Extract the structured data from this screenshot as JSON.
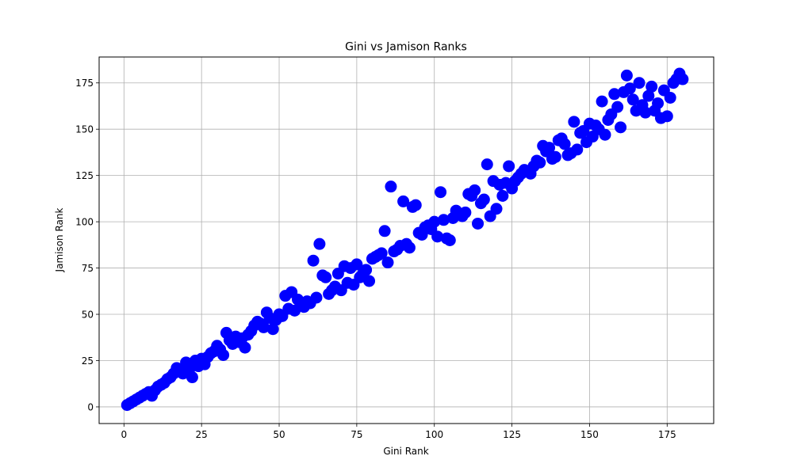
{
  "chart_data": {
    "type": "scatter",
    "title": "Gini vs Jamison Ranks",
    "xlabel": "Gini Rank",
    "ylabel": "Jamison Rank",
    "xlim": [
      -8,
      190
    ],
    "ylim": [
      -9,
      189
    ],
    "xticks": [
      0,
      25,
      50,
      75,
      100,
      125,
      150,
      175
    ],
    "yticks": [
      0,
      25,
      50,
      75,
      100,
      125,
      150,
      175
    ],
    "grid": true,
    "marker_color": "#0000ff",
    "series": [
      {
        "x": [
          1,
          2,
          3,
          4,
          5,
          6,
          7,
          8,
          9,
          10,
          11,
          12,
          13,
          14,
          15,
          16,
          17,
          18,
          19,
          20,
          21,
          22,
          23,
          24,
          25,
          26,
          27,
          28,
          29,
          30,
          31,
          32,
          33,
          34,
          35,
          36,
          37,
          38,
          39,
          40,
          41,
          42,
          43,
          44,
          45,
          46,
          47,
          48,
          49,
          50,
          51,
          52,
          53,
          54,
          55,
          56,
          57,
          58,
          59,
          60,
          61,
          62,
          63,
          64,
          65,
          66,
          67,
          68,
          69,
          70,
          71,
          72,
          73,
          74,
          75,
          76,
          77,
          78,
          79,
          80,
          81,
          82,
          83,
          84,
          85,
          86,
          87,
          88,
          89,
          90,
          91,
          92,
          93,
          94,
          95,
          96,
          97,
          98,
          99,
          100,
          101,
          102,
          103,
          104,
          105,
          106,
          107,
          108,
          109,
          110,
          111,
          112,
          113,
          114,
          115,
          116,
          117,
          118,
          119,
          120,
          121,
          122,
          123,
          124,
          125,
          126,
          127,
          128,
          129,
          130,
          131,
          132,
          133,
          134,
          135,
          136,
          137,
          138,
          139,
          140,
          141,
          142,
          143,
          144,
          145,
          146,
          147,
          148,
          149,
          150,
          151,
          152,
          153,
          154,
          155,
          156,
          157,
          158,
          159,
          160,
          161,
          162,
          163,
          164,
          165,
          166,
          167,
          168,
          169,
          170,
          171,
          172,
          173,
          174,
          175,
          176,
          177,
          178,
          179,
          180
        ],
        "y": [
          1,
          2,
          3,
          4,
          5,
          6,
          7,
          8,
          6,
          9,
          11,
          12,
          13,
          15,
          16,
          18,
          21,
          19,
          18,
          24,
          20,
          16,
          25,
          22,
          26,
          23,
          27,
          29,
          30,
          33,
          31,
          28,
          40,
          36,
          34,
          38,
          35,
          37,
          32,
          39,
          41,
          44,
          46,
          45,
          43,
          51,
          48,
          42,
          47,
          50,
          49,
          60,
          53,
          62,
          52,
          58,
          55,
          54,
          57,
          56,
          79,
          59,
          88,
          71,
          70,
          61,
          63,
          65,
          72,
          63,
          76,
          67,
          75,
          66,
          77,
          70,
          72,
          74,
          68,
          80,
          81,
          82,
          83,
          95,
          78,
          119,
          84,
          85,
          87,
          111,
          88,
          86,
          108,
          109,
          94,
          93,
          97,
          98,
          96,
          100,
          92,
          116,
          101,
          91,
          90,
          102,
          106,
          104,
          103,
          105,
          115,
          114,
          117,
          99,
          110,
          112,
          131,
          103,
          122,
          107,
          120,
          114,
          121,
          130,
          118,
          122,
          124,
          126,
          128,
          127,
          126,
          130,
          133,
          132,
          141,
          138,
          140,
          134,
          135,
          144,
          145,
          142,
          136,
          137,
          154,
          139,
          148,
          149,
          143,
          153,
          146,
          152,
          150,
          165,
          147,
          155,
          158,
          169,
          162,
          151,
          170,
          179,
          172,
          166,
          160,
          175,
          163,
          159,
          168,
          173,
          160,
          164,
          156,
          171,
          157,
          167,
          175,
          177,
          180,
          177
        ]
      }
    ]
  }
}
